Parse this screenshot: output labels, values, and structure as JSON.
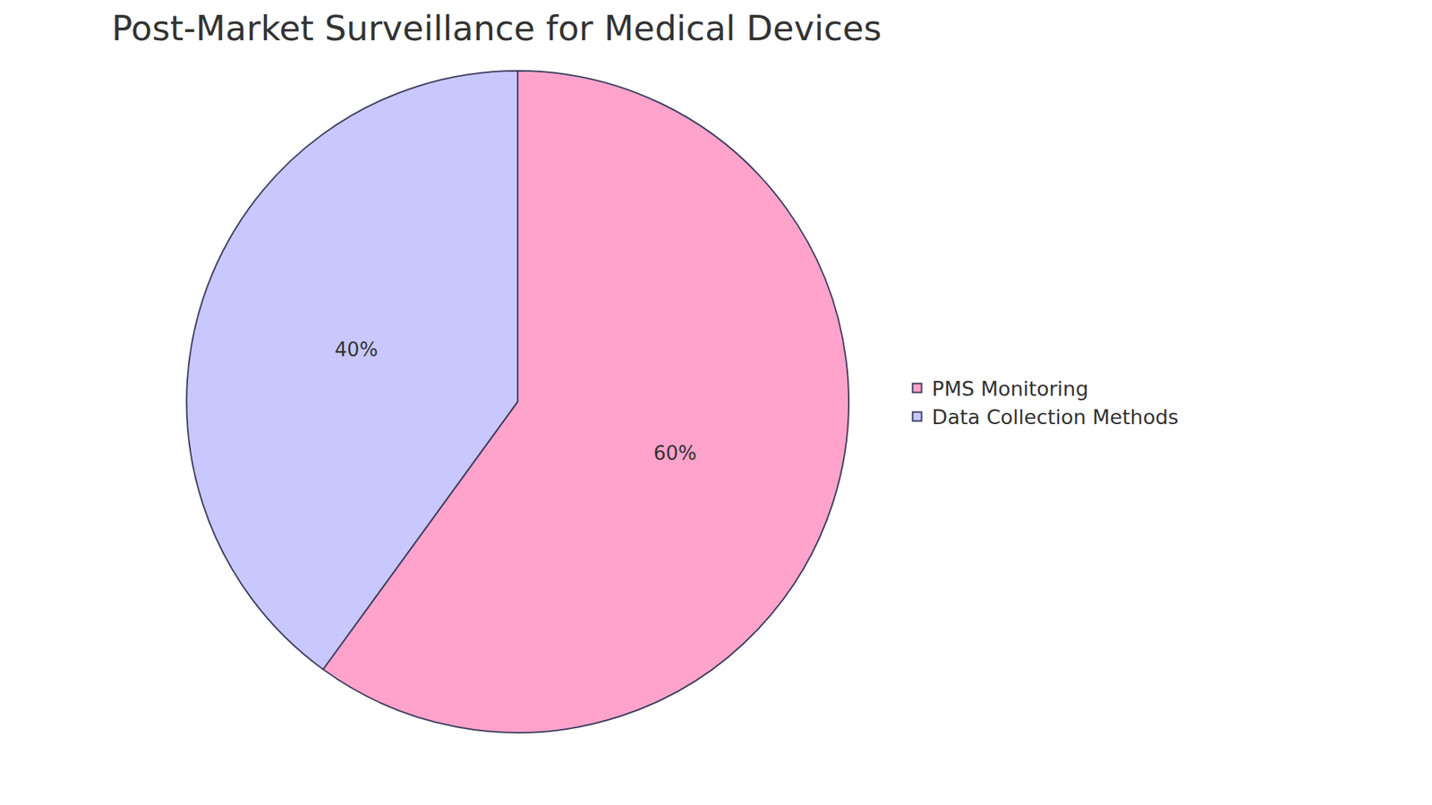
{
  "chart_data": {
    "type": "pie",
    "title": "Post-Market Surveillance for Medical Devices",
    "categories": [
      "PMS Monitoring",
      "Data Collection Methods"
    ],
    "values": [
      60,
      40
    ],
    "value_labels": [
      "60%",
      "40%"
    ],
    "colors": [
      "#ffa3cd",
      "#c8c8ff"
    ],
    "data_labels": true,
    "legend": "right"
  }
}
